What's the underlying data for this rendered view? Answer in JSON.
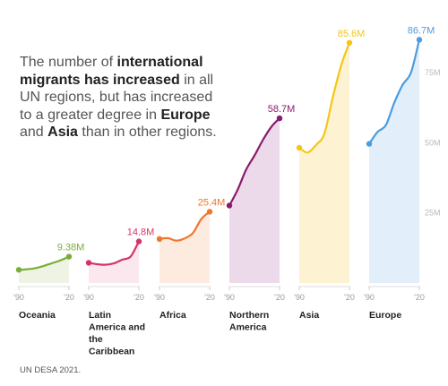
{
  "headline": {
    "t1": "The number of ",
    "b1": "international migrants has increased",
    "t2": " in all UN regions, but has increased to a greater degree in ",
    "b2": "Europe",
    "t3": " and ",
    "b3": "Asia",
    "t4": " than in other regions."
  },
  "source": "UN DESA 2021.",
  "chart_data": {
    "type": "area",
    "ylim": [
      0,
      90
    ],
    "y_axis_labels": [
      "25M",
      "50M",
      "75M"
    ],
    "y_axis_ticks": [
      25,
      50,
      75
    ],
    "x_tick_labels": [
      "'90",
      "'20"
    ],
    "series": [
      {
        "name": "Oceania",
        "color": "#7aae38",
        "fill": "#eef3e4",
        "x": [
          1990,
          1995,
          2000,
          2005,
          2010,
          2015,
          2020
        ],
        "values": [
          4.7,
          4.9,
          5.3,
          6.1,
          7.1,
          8.1,
          9.38
        ],
        "end_label": "9.38M"
      },
      {
        "name": "Latin America and the Caribbean",
        "color": "#d6336c",
        "fill": "#fbe7ee",
        "x": [
          1990,
          1995,
          2000,
          2005,
          2010,
          2015,
          2020
        ],
        "values": [
          7.2,
          6.7,
          6.5,
          7.0,
          8.3,
          9.4,
          14.8
        ],
        "end_label": "14.8M"
      },
      {
        "name": "Africa",
        "color": "#f0772a",
        "fill": "#fdebdf",
        "x": [
          1990,
          1995,
          2000,
          2005,
          2010,
          2015,
          2020
        ],
        "values": [
          15.7,
          16.0,
          15.1,
          15.9,
          17.8,
          22.8,
          25.4
        ],
        "end_label": "25.4M"
      },
      {
        "name": "Northern America",
        "color": "#8a1a6e",
        "fill": "#ecdaea",
        "x": [
          1990,
          1995,
          2000,
          2005,
          2010,
          2015,
          2020
        ],
        "values": [
          27.6,
          33.3,
          40.4,
          45.4,
          50.9,
          55.6,
          58.7
        ],
        "end_label": "58.7M"
      },
      {
        "name": "Asia",
        "color": "#f5c518",
        "fill": "#fdf3d2",
        "x": [
          1990,
          1995,
          2000,
          2005,
          2010,
          2015,
          2020
        ],
        "values": [
          48.2,
          46.5,
          49.2,
          53.2,
          66.0,
          77.5,
          85.6
        ],
        "end_label": "85.6M"
      },
      {
        "name": "Europe",
        "color": "#4a9de0",
        "fill": "#e2eef9",
        "x": [
          1990,
          1995,
          2000,
          2005,
          2010,
          2015,
          2020
        ],
        "values": [
          49.6,
          53.8,
          56.3,
          64.2,
          70.6,
          75.0,
          86.7
        ],
        "end_label": "86.7M"
      }
    ]
  },
  "region_labels": [
    [
      "Oceania"
    ],
    [
      "Latin",
      "America and",
      "the",
      "Caribbean"
    ],
    [
      "Africa"
    ],
    [
      "Northern",
      "America"
    ],
    [
      "Asia"
    ],
    [
      "Europe"
    ]
  ]
}
